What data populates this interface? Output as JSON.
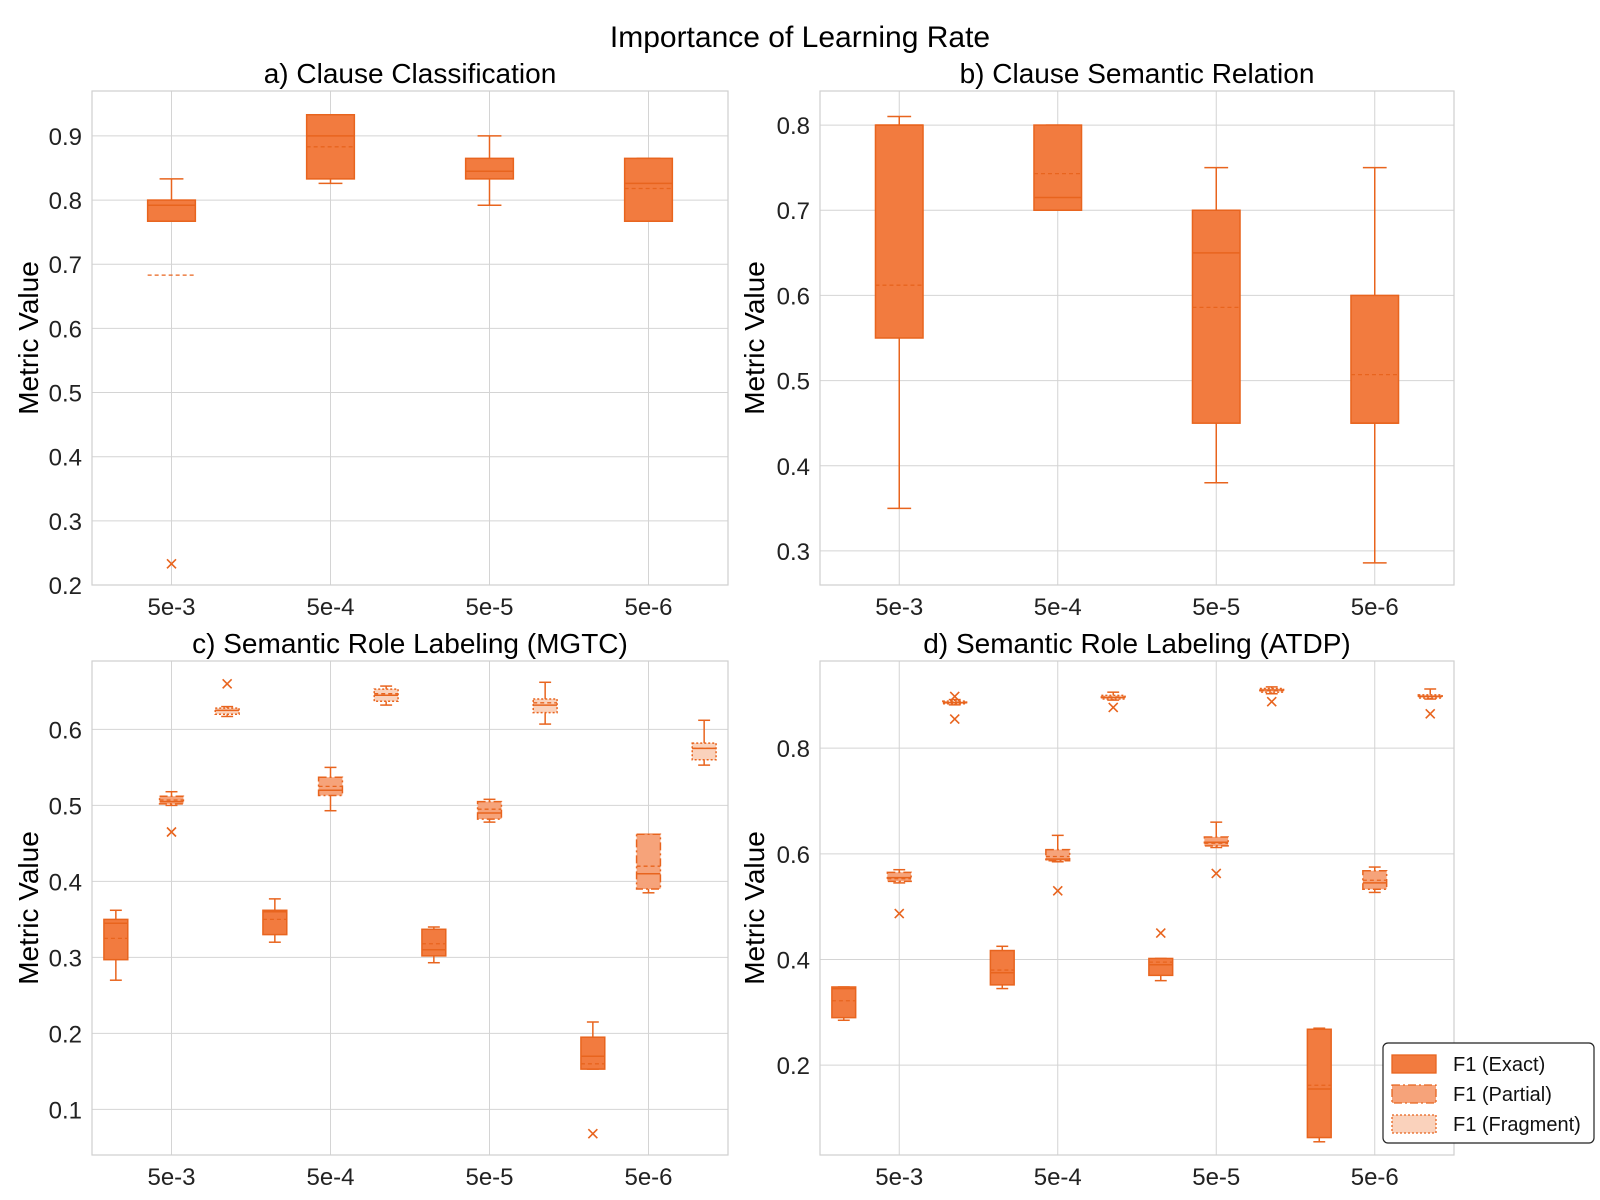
{
  "figure": {
    "suptitle": "Importance of Learning Rate",
    "accent_color": "#F27B3F",
    "edge_color": "#E8641E",
    "partial_fill": "#F6A37A",
    "fragment_fill": "#FAD2BC"
  },
  "chart_data": [
    {
      "type": "box",
      "title": "a) Clause Classification",
      "ylabel": "Metric Value",
      "xlabel": "",
      "categories": [
        "5e-3",
        "5e-4",
        "5e-5",
        "5e-6"
      ],
      "ylim": [
        0.2,
        0.97
      ],
      "yticks": [
        0.2,
        0.3,
        0.4,
        0.5,
        0.6,
        0.7,
        0.8,
        0.9
      ],
      "grid": true,
      "series": [
        {
          "boxes": [
            {
              "whislo": 0.767,
              "q1": 0.767,
              "med": 0.792,
              "mean": 0.683,
              "q3": 0.8,
              "whishi": 0.833,
              "fliers": [
                0.233
              ]
            },
            {
              "whislo": 0.826,
              "q1": 0.833,
              "med": 0.9,
              "mean": 0.883,
              "q3": 0.933,
              "whishi": 0.933,
              "fliers": []
            },
            {
              "whislo": 0.792,
              "q1": 0.833,
              "med": 0.845,
              "mean": 0.845,
              "q3": 0.865,
              "whishi": 0.9,
              "fliers": []
            },
            {
              "whislo": 0.767,
              "q1": 0.767,
              "med": 0.826,
              "mean": 0.818,
              "q3": 0.865,
              "whishi": 0.865,
              "fliers": []
            }
          ]
        }
      ]
    },
    {
      "type": "box",
      "title": "b) Clause Semantic Relation",
      "ylabel": "Metric Value",
      "xlabel": "",
      "categories": [
        "5e-3",
        "5e-4",
        "5e-5",
        "5e-6"
      ],
      "ylim": [
        0.26,
        0.84
      ],
      "yticks": [
        0.3,
        0.4,
        0.5,
        0.6,
        0.7,
        0.8
      ],
      "grid": true,
      "series": [
        {
          "boxes": [
            {
              "whislo": 0.35,
              "q1": 0.55,
              "med": 0.8,
              "mean": 0.612,
              "q3": 0.8,
              "whishi": 0.81,
              "fliers": []
            },
            {
              "whislo": 0.7,
              "q1": 0.7,
              "med": 0.715,
              "mean": 0.743,
              "q3": 0.8,
              "whishi": 0.8,
              "fliers": []
            },
            {
              "whislo": 0.38,
              "q1": 0.45,
              "med": 0.65,
              "mean": 0.586,
              "q3": 0.7,
              "whishi": 0.75,
              "fliers": []
            },
            {
              "whislo": 0.286,
              "q1": 0.45,
              "med": 0.45,
              "mean": 0.507,
              "q3": 0.6,
              "whishi": 0.75,
              "fliers": []
            }
          ]
        }
      ]
    },
    {
      "type": "box",
      "title": "c) Semantic Role Labeling (MGTC)",
      "ylabel": "Metric Value",
      "xlabel": "",
      "categories": [
        "5e-3",
        "5e-4",
        "5e-5",
        "5e-6"
      ],
      "ylim": [
        0.04,
        0.69
      ],
      "yticks": [
        0.1,
        0.2,
        0.3,
        0.4,
        0.5,
        0.6
      ],
      "grid": true,
      "series": [
        {
          "name": "F1 (Exact)",
          "boxes": [
            {
              "whislo": 0.27,
              "q1": 0.297,
              "med": 0.345,
              "mean": 0.325,
              "q3": 0.35,
              "whishi": 0.362,
              "fliers": []
            },
            {
              "whislo": 0.32,
              "q1": 0.33,
              "med": 0.36,
              "mean": 0.35,
              "q3": 0.362,
              "whishi": 0.377,
              "fliers": []
            },
            {
              "whislo": 0.293,
              "q1": 0.302,
              "med": 0.31,
              "mean": 0.318,
              "q3": 0.337,
              "whishi": 0.34,
              "fliers": []
            },
            {
              "whislo": 0.153,
              "q1": 0.153,
              "med": 0.17,
              "mean": 0.16,
              "q3": 0.195,
              "whishi": 0.215,
              "fliers": [
                0.068
              ]
            }
          ]
        },
        {
          "name": "F1 (Partial)",
          "boxes": [
            {
              "whislo": 0.5,
              "q1": 0.502,
              "med": 0.505,
              "mean": 0.507,
              "q3": 0.512,
              "whishi": 0.518,
              "fliers": [
                0.465
              ]
            },
            {
              "whislo": 0.493,
              "q1": 0.513,
              "med": 0.52,
              "mean": 0.525,
              "q3": 0.537,
              "whishi": 0.55,
              "fliers": []
            },
            {
              "whislo": 0.478,
              "q1": 0.482,
              "med": 0.49,
              "mean": 0.495,
              "q3": 0.505,
              "whishi": 0.508,
              "fliers": []
            },
            {
              "whislo": 0.385,
              "q1": 0.39,
              "med": 0.41,
              "mean": 0.42,
              "q3": 0.462,
              "whishi": 0.462,
              "fliers": []
            }
          ]
        },
        {
          "name": "F1 (Fragment)",
          "boxes": [
            {
              "whislo": 0.617,
              "q1": 0.62,
              "med": 0.625,
              "mean": 0.625,
              "q3": 0.628,
              "whishi": 0.63,
              "fliers": [
                0.66
              ]
            },
            {
              "whislo": 0.632,
              "q1": 0.637,
              "med": 0.645,
              "mean": 0.647,
              "q3": 0.653,
              "whishi": 0.657,
              "fliers": []
            },
            {
              "whislo": 0.607,
              "q1": 0.622,
              "med": 0.632,
              "mean": 0.635,
              "q3": 0.64,
              "whishi": 0.662,
              "fliers": []
            },
            {
              "whislo": 0.553,
              "q1": 0.56,
              "med": 0.575,
              "mean": 0.575,
              "q3": 0.582,
              "whishi": 0.612,
              "fliers": []
            }
          ]
        }
      ]
    },
    {
      "type": "box",
      "title": "d) Semantic Role Labeling (ATDP)",
      "ylabel": "Metric Value",
      "xlabel": "",
      "categories": [
        "5e-3",
        "5e-4",
        "5e-5",
        "5e-6"
      ],
      "ylim": [
        0.03,
        0.965
      ],
      "yticks": [
        0.2,
        0.4,
        0.6,
        0.8
      ],
      "grid": true,
      "legend": "lower right",
      "series": [
        {
          "name": "F1 (Exact)",
          "boxes": [
            {
              "whislo": 0.285,
              "q1": 0.29,
              "med": 0.345,
              "mean": 0.322,
              "q3": 0.348,
              "whishi": 0.348,
              "fliers": []
            },
            {
              "whislo": 0.345,
              "q1": 0.352,
              "med": 0.375,
              "mean": 0.38,
              "q3": 0.417,
              "whishi": 0.425,
              "fliers": []
            },
            {
              "whislo": 0.36,
              "q1": 0.37,
              "med": 0.39,
              "mean": 0.395,
              "q3": 0.402,
              "whishi": 0.402,
              "fliers": [
                0.45
              ]
            },
            {
              "whislo": 0.055,
              "q1": 0.063,
              "med": 0.155,
              "mean": 0.162,
              "q3": 0.268,
              "whishi": 0.27,
              "fliers": []
            }
          ]
        },
        {
          "name": "F1 (Partial)",
          "boxes": [
            {
              "whislo": 0.545,
              "q1": 0.548,
              "med": 0.555,
              "mean": 0.553,
              "q3": 0.565,
              "whishi": 0.57,
              "fliers": [
                0.487
              ]
            },
            {
              "whislo": 0.585,
              "q1": 0.587,
              "med": 0.59,
              "mean": 0.595,
              "q3": 0.608,
              "whishi": 0.635,
              "fliers": [
                0.53
              ]
            },
            {
              "whislo": 0.612,
              "q1": 0.615,
              "med": 0.622,
              "mean": 0.62,
              "q3": 0.632,
              "whishi": 0.66,
              "fliers": [
                0.563
              ]
            },
            {
              "whislo": 0.527,
              "q1": 0.533,
              "med": 0.545,
              "mean": 0.55,
              "q3": 0.568,
              "whishi": 0.575,
              "fliers": []
            }
          ]
        },
        {
          "name": "F1 (Fragment)",
          "boxes": [
            {
              "whislo": 0.882,
              "q1": 0.884,
              "med": 0.886,
              "mean": 0.887,
              "q3": 0.889,
              "whishi": 0.892,
              "fliers": [
                0.898,
                0.855
              ]
            },
            {
              "whislo": 0.891,
              "q1": 0.893,
              "med": 0.896,
              "mean": 0.897,
              "q3": 0.9,
              "whishi": 0.906,
              "fliers": [
                0.877
              ]
            },
            {
              "whislo": 0.903,
              "q1": 0.906,
              "med": 0.91,
              "mean": 0.909,
              "q3": 0.913,
              "whishi": 0.916,
              "fliers": [
                0.888
              ]
            },
            {
              "whislo": 0.893,
              "q1": 0.895,
              "med": 0.898,
              "mean": 0.898,
              "q3": 0.901,
              "whishi": 0.912,
              "fliers": [
                0.865
              ]
            }
          ]
        }
      ]
    }
  ]
}
